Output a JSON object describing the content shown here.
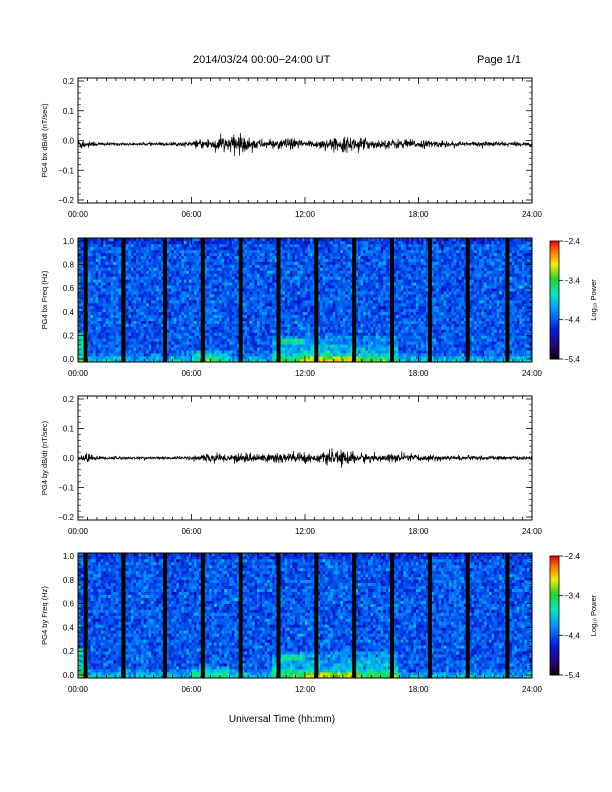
{
  "header": {
    "title": "2014/03/24  00:00−24:00 UT",
    "page_label": "Page 1/1"
  },
  "xlabel": "Universal Time (hh:mm)",
  "chart_data": [
    {
      "type": "line",
      "panel": "bx",
      "ylabel": "PG4 bx dB/dt (nT/sec)",
      "xlim": [
        0,
        24
      ],
      "ylim": [
        -0.2,
        0.2
      ],
      "xticks": [
        "00:00",
        "06:00",
        "12:00",
        "18:00",
        "24:00"
      ],
      "yticks": [
        "0.2",
        "0.1",
        "0.0",
        "−0.1",
        "−0.2"
      ],
      "baseline": -0.012,
      "envelope": [
        [
          0,
          0.02
        ],
        [
          0.5,
          0.012
        ],
        [
          1,
          0.005
        ],
        [
          3,
          0.004
        ],
        [
          5,
          0.005
        ],
        [
          6,
          0.008
        ],
        [
          6.5,
          0.014
        ],
        [
          7,
          0.018
        ],
        [
          8,
          0.025
        ],
        [
          8.5,
          0.03
        ],
        [
          9,
          0.022
        ],
        [
          9.5,
          0.015
        ],
        [
          10,
          0.012
        ],
        [
          10.5,
          0.014
        ],
        [
          11,
          0.018
        ],
        [
          12,
          0.012
        ],
        [
          12.5,
          0.012
        ],
        [
          13,
          0.015
        ],
        [
          14,
          0.02
        ],
        [
          14.5,
          0.022
        ],
        [
          15,
          0.018
        ],
        [
          16,
          0.012
        ],
        [
          17,
          0.015
        ],
        [
          18,
          0.012
        ],
        [
          19,
          0.01
        ],
        [
          20,
          0.008
        ],
        [
          22,
          0.007
        ],
        [
          24,
          0.005
        ]
      ],
      "color": "#000000"
    },
    {
      "type": "heatmap",
      "panel": "bx_spectrogram",
      "ylabel": "PG4 bx Freq (Hz)",
      "xlim": [
        0,
        24
      ],
      "ylim": [
        0.0,
        1.0
      ],
      "xticks": [
        "00:00",
        "06:00",
        "12:00",
        "18:00",
        "24:00"
      ],
      "yticks": [
        "1.0",
        "0.8",
        "0.6",
        "0.4",
        "0.2",
        "0.0"
      ],
      "colorbar": {
        "label": "Log₁₀ Power",
        "range": [
          -5.4,
          -2.4
        ],
        "ticks": [
          "−2.4",
          "−3.4",
          "−4.4",
          "−5.4"
        ]
      },
      "data_gaps_hours": [
        0.4,
        2.4,
        4.6,
        6.6,
        8.6,
        10.6,
        12.6,
        14.6,
        16.6,
        18.6,
        20.6,
        22.7
      ]
    },
    {
      "type": "line",
      "panel": "by",
      "ylabel": "PG4 by dB/dt (nT/sec)",
      "xlim": [
        0,
        24
      ],
      "ylim": [
        -0.2,
        0.2
      ],
      "xticks": [
        "00:00",
        "06:00",
        "12:00",
        "18:00",
        "24:00"
      ],
      "yticks": [
        "0.2",
        "0.1",
        "0.0",
        "−0.1",
        "−0.2"
      ],
      "baseline": 0.0,
      "envelope": [
        [
          0,
          0.008
        ],
        [
          0.5,
          0.015
        ],
        [
          1,
          0.006
        ],
        [
          3,
          0.004
        ],
        [
          5,
          0.004
        ],
        [
          6,
          0.006
        ],
        [
          6.5,
          0.01
        ],
        [
          7,
          0.012
        ],
        [
          8,
          0.012
        ],
        [
          8.5,
          0.015
        ],
        [
          9,
          0.012
        ],
        [
          10,
          0.015
        ],
        [
          10.5,
          0.02
        ],
        [
          11,
          0.018
        ],
        [
          11.5,
          0.02
        ],
        [
          12,
          0.015
        ],
        [
          12.5,
          0.012
        ],
        [
          13,
          0.016
        ],
        [
          14,
          0.022
        ],
        [
          14.5,
          0.02
        ],
        [
          15,
          0.015
        ],
        [
          16,
          0.01
        ],
        [
          17,
          0.015
        ],
        [
          18,
          0.01
        ],
        [
          20,
          0.007
        ],
        [
          22,
          0.006
        ],
        [
          24,
          0.005
        ]
      ],
      "color": "#000000"
    },
    {
      "type": "heatmap",
      "panel": "by_spectrogram",
      "ylabel": "PG4 by Freq (Hz)",
      "xlim": [
        0,
        24
      ],
      "ylim": [
        0.0,
        1.0
      ],
      "xticks": [
        "00:00",
        "06:00",
        "12:00",
        "18:00",
        "24:00"
      ],
      "yticks": [
        "1.0",
        "0.8",
        "0.6",
        "0.4",
        "0.2",
        "0.0"
      ],
      "colorbar": {
        "label": "Log₁₀ Power",
        "range": [
          -5.4,
          -2.4
        ],
        "ticks": [
          "−2.4",
          "−3.4",
          "−4.4",
          "−5.4"
        ]
      },
      "data_gaps_hours": [
        0.4,
        2.4,
        4.6,
        6.6,
        8.6,
        10.6,
        12.6,
        14.6,
        16.6,
        18.6,
        20.6,
        22.7
      ]
    }
  ]
}
